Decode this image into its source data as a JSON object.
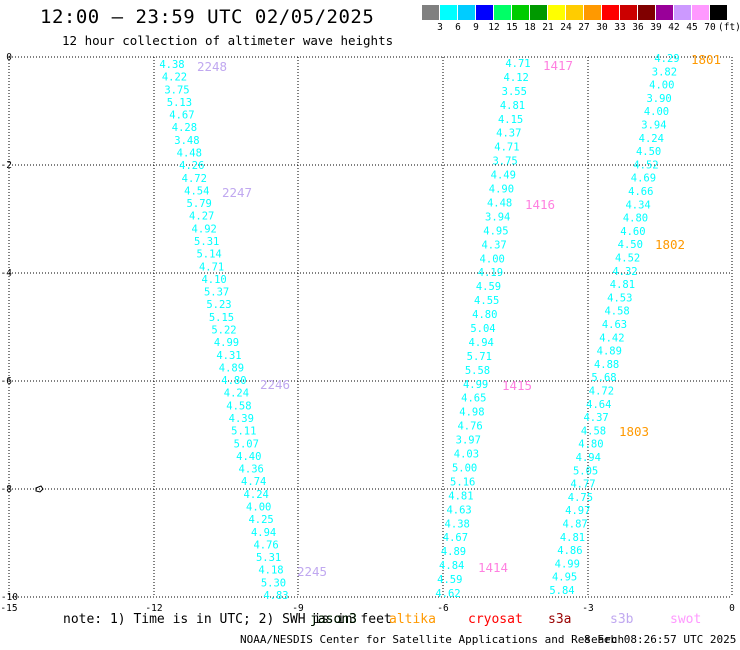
{
  "header": {
    "title": "12:00 – 23:59 UTC 02/05/2025",
    "subtitle": "12 hour collection of altimeter wave heights"
  },
  "colorbar": {
    "colors": [
      "#808080",
      "#00ffff",
      "#00ccff",
      "#0000ff",
      "#00ff66",
      "#00cc00",
      "#009900",
      "#ffff00",
      "#ffcc00",
      "#ff9900",
      "#ff0000",
      "#cc0000",
      "#800000",
      "#990099",
      "#cc99ff",
      "#ff99ff",
      "#000000"
    ],
    "ticks": [
      "3",
      "6",
      "9",
      "12",
      "15",
      "18",
      "21",
      "24",
      "27",
      "30",
      "33",
      "36",
      "39",
      "42",
      "45",
      "70",
      "(ft)"
    ]
  },
  "axes": {
    "x_ticks": [
      "-15",
      "-12",
      "-9",
      "-6",
      "-3",
      "0"
    ],
    "y_ticks": [
      "0",
      "-2",
      "-4",
      "-6",
      "-8",
      "-10"
    ]
  },
  "tracks": [
    {
      "color": "#00ffff",
      "values": [
        "4.38",
        "4.22",
        "3.75",
        "5.13",
        "4.67",
        "4.28",
        "3.48",
        "4.48",
        "4.26",
        "4.72",
        "4.54",
        "5.79",
        "4.27",
        "4.92",
        "5.31",
        "5.14",
        "4.71",
        "4.10",
        "5.37",
        "5.23",
        "5.15",
        "5.22",
        "4.99",
        "4.31",
        "4.89",
        "4.80",
        "4.24",
        "4.58",
        "4.39",
        "5.11",
        "5.07",
        "4.40",
        "4.36",
        "4.74",
        "4.24",
        "4.00",
        "4.25",
        "4.94",
        "4.76",
        "5.31",
        "4.18",
        "5.30",
        "4.83"
      ]
    },
    {
      "color": "#00ffff",
      "values": [
        "4.71",
        "4.12",
        "3.55",
        "4.81",
        "4.15",
        "4.37",
        "4.71",
        "3.75",
        "4.49",
        "4.90",
        "4.48",
        "3.94",
        "4.95",
        "4.37",
        "4.00",
        "4.19",
        "4.59",
        "4.55",
        "4.80",
        "5.04",
        "4.94",
        "5.71",
        "5.58",
        "4.99",
        "4.65",
        "4.98",
        "4.76",
        "3.97",
        "4.03",
        "5.00",
        "5.16",
        "4.81",
        "4.63",
        "4.38",
        "4.67",
        "4.89",
        "4.84",
        "4.59",
        "4.62"
      ]
    },
    {
      "color": "#00ffff",
      "values": [
        "4.29",
        "3.82",
        "4.00",
        "3.90",
        "4.00",
        "3.94",
        "4.24",
        "4.50",
        "4.52",
        "4.69",
        "4.66",
        "4.34",
        "4.80",
        "4.60",
        "4.50",
        "4.52",
        "4.32",
        "4.81",
        "4.53",
        "4.58",
        "4.63",
        "4.42",
        "4.89",
        "4.88",
        "5.68",
        "4.72",
        "4.64",
        "4.37",
        "4.58",
        "4.80",
        "4.94",
        "5.05",
        "4.77",
        "4.75",
        "4.97",
        "4.87",
        "4.81",
        "4.86",
        "4.99",
        "4.95",
        "5.84"
      ]
    }
  ],
  "time_labels": [
    {
      "text": "2248",
      "color": "#c0a8f0"
    },
    {
      "text": "2247",
      "color": "#c0a8f0"
    },
    {
      "text": "2246",
      "color": "#c0a8f0"
    },
    {
      "text": "2245",
      "color": "#c0a8f0"
    },
    {
      "text": "1417",
      "color": "#ff80e0"
    },
    {
      "text": "1416",
      "color": "#ff80e0"
    },
    {
      "text": "1415",
      "color": "#ff80e0"
    },
    {
      "text": "1414",
      "color": "#ff80e0"
    },
    {
      "text": "1801",
      "color": "#ff9900"
    },
    {
      "text": "1802",
      "color": "#ff9900"
    },
    {
      "text": "1803",
      "color": "#ff9900"
    }
  ],
  "footer": {
    "note": "note: 1) Time is in UTC; 2) SWH is in feet",
    "satellites": [
      {
        "name": "jason3",
        "color": "#00aa00"
      },
      {
        "name": "jason3",
        "color": "#000000"
      },
      {
        "name": "altika",
        "color": "#ff9900"
      },
      {
        "name": "cryosat",
        "color": "#ff0000"
      },
      {
        "name": "s3a",
        "color": "#990000"
      },
      {
        "name": "s3b",
        "color": "#c0a8f0"
      },
      {
        "name": "swot",
        "color": "#ff99ff"
      }
    ],
    "credit": "NOAA/NESDIS Center for Satellite Applications and Research",
    "timestamp": "8 Feb 08:26:57 UTC 2025"
  }
}
